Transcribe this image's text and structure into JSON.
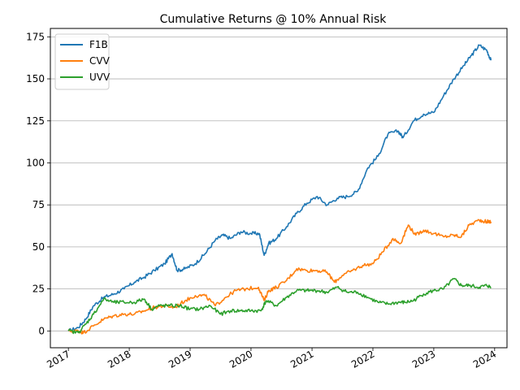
{
  "chart_data": {
    "type": "line",
    "title": "Cumulative Returns @ 10% Annual Risk",
    "xlabel": "",
    "ylabel": "",
    "xlim": [
      "2016-09-15",
      "2024-03-15"
    ],
    "ylim": [
      -10,
      180
    ],
    "x_ticks": [
      "2017",
      "2018",
      "2019",
      "2020",
      "2021",
      "2022",
      "2023",
      "2024"
    ],
    "y_ticks": [
      0,
      25,
      50,
      75,
      100,
      125,
      150,
      175
    ],
    "grid": "horizontal",
    "legend_position": "top-left",
    "series": [
      {
        "name": "F1B",
        "color": "#1f77b4",
        "points": [
          [
            "2017-01-01",
            0
          ],
          [
            "2017-03-01",
            2
          ],
          [
            "2017-04-15",
            7
          ],
          [
            "2017-06-01",
            15
          ],
          [
            "2017-08-01",
            20
          ],
          [
            "2017-10-01",
            22
          ],
          [
            "2017-12-01",
            25
          ],
          [
            "2018-02-01",
            29
          ],
          [
            "2018-04-01",
            32
          ],
          [
            "2018-06-01",
            36
          ],
          [
            "2018-08-01",
            40
          ],
          [
            "2018-09-15",
            46
          ],
          [
            "2018-10-15",
            36
          ],
          [
            "2018-12-01",
            37
          ],
          [
            "2019-02-01",
            40
          ],
          [
            "2019-04-01",
            46
          ],
          [
            "2019-06-01",
            54
          ],
          [
            "2019-07-15",
            57
          ],
          [
            "2019-09-01",
            55
          ],
          [
            "2019-11-01",
            59
          ],
          [
            "2020-01-01",
            58
          ],
          [
            "2020-02-20",
            58
          ],
          [
            "2020-03-20",
            45
          ],
          [
            "2020-04-15",
            52
          ],
          [
            "2020-06-01",
            55
          ],
          [
            "2020-08-01",
            62
          ],
          [
            "2020-10-01",
            70
          ],
          [
            "2020-12-01",
            76
          ],
          [
            "2021-02-01",
            80
          ],
          [
            "2021-04-01",
            75
          ],
          [
            "2021-06-01",
            79
          ],
          [
            "2021-08-01",
            80
          ],
          [
            "2021-10-01",
            83
          ],
          [
            "2021-12-01",
            97
          ],
          [
            "2022-02-01",
            104
          ],
          [
            "2022-04-01",
            117
          ],
          [
            "2022-06-01",
            119
          ],
          [
            "2022-07-01",
            115
          ],
          [
            "2022-09-01",
            125
          ],
          [
            "2022-11-01",
            129
          ],
          [
            "2023-01-01",
            130
          ],
          [
            "2023-03-01",
            140
          ],
          [
            "2023-05-01",
            150
          ],
          [
            "2023-07-01",
            158
          ],
          [
            "2023-08-15",
            164
          ],
          [
            "2023-10-01",
            170
          ],
          [
            "2023-11-15",
            167
          ],
          [
            "2023-12-10",
            161
          ]
        ]
      },
      {
        "name": "CVV",
        "color": "#ff7f0e",
        "points": [
          [
            "2017-01-01",
            0
          ],
          [
            "2017-03-01",
            0
          ],
          [
            "2017-04-01",
            -1
          ],
          [
            "2017-06-01",
            3
          ],
          [
            "2017-08-01",
            7
          ],
          [
            "2017-10-01",
            9
          ],
          [
            "2017-12-01",
            10
          ],
          [
            "2018-02-01",
            10
          ],
          [
            "2018-04-01",
            12
          ],
          [
            "2018-06-01",
            14
          ],
          [
            "2018-08-01",
            15
          ],
          [
            "2018-10-01",
            14
          ],
          [
            "2018-12-01",
            18
          ],
          [
            "2019-02-01",
            21
          ],
          [
            "2019-04-01",
            21
          ],
          [
            "2019-06-01",
            15
          ],
          [
            "2019-08-01",
            20
          ],
          [
            "2019-10-01",
            24
          ],
          [
            "2019-12-01",
            25
          ],
          [
            "2020-02-15",
            26
          ],
          [
            "2020-03-20",
            18
          ],
          [
            "2020-04-15",
            24
          ],
          [
            "2020-06-01",
            26
          ],
          [
            "2020-08-01",
            30
          ],
          [
            "2020-10-01",
            37
          ],
          [
            "2020-12-01",
            36
          ],
          [
            "2021-02-01",
            36
          ],
          [
            "2021-04-01",
            35
          ],
          [
            "2021-05-15",
            29
          ],
          [
            "2021-07-01",
            33
          ],
          [
            "2021-09-01",
            36
          ],
          [
            "2021-11-01",
            39
          ],
          [
            "2022-01-01",
            40
          ],
          [
            "2022-03-01",
            47
          ],
          [
            "2022-05-01",
            55
          ],
          [
            "2022-06-15",
            52
          ],
          [
            "2022-08-01",
            63
          ],
          [
            "2022-09-15",
            57
          ],
          [
            "2022-11-01",
            60
          ],
          [
            "2023-01-01",
            58
          ],
          [
            "2023-03-01",
            56
          ],
          [
            "2023-05-01",
            57
          ],
          [
            "2023-06-15",
            56
          ],
          [
            "2023-08-01",
            63
          ],
          [
            "2023-10-01",
            66
          ],
          [
            "2023-11-15",
            65
          ],
          [
            "2023-12-10",
            65
          ]
        ]
      },
      {
        "name": "UVV",
        "color": "#2ca02c",
        "points": [
          [
            "2017-01-01",
            0
          ],
          [
            "2017-03-01",
            -1
          ],
          [
            "2017-04-15",
            4
          ],
          [
            "2017-06-01",
            10
          ],
          [
            "2017-08-01",
            19
          ],
          [
            "2017-10-01",
            17
          ],
          [
            "2017-12-01",
            17
          ],
          [
            "2018-02-01",
            17
          ],
          [
            "2018-04-01",
            19
          ],
          [
            "2018-05-15",
            13
          ],
          [
            "2018-07-01",
            15
          ],
          [
            "2018-09-01",
            15
          ],
          [
            "2018-11-01",
            15
          ],
          [
            "2019-01-01",
            13
          ],
          [
            "2019-03-01",
            13
          ],
          [
            "2019-05-01",
            15
          ],
          [
            "2019-07-01",
            10
          ],
          [
            "2019-09-01",
            12
          ],
          [
            "2019-11-01",
            12
          ],
          [
            "2020-01-01",
            12
          ],
          [
            "2020-03-01",
            12
          ],
          [
            "2020-04-01",
            18
          ],
          [
            "2020-06-01",
            15
          ],
          [
            "2020-08-01",
            20
          ],
          [
            "2020-10-01",
            24
          ],
          [
            "2020-12-01",
            24
          ],
          [
            "2021-02-01",
            24
          ],
          [
            "2021-04-01",
            23
          ],
          [
            "2021-06-01",
            26
          ],
          [
            "2021-08-01",
            23
          ],
          [
            "2021-10-01",
            23
          ],
          [
            "2021-12-01",
            20
          ],
          [
            "2022-02-01",
            17
          ],
          [
            "2022-04-01",
            16
          ],
          [
            "2022-06-01",
            17
          ],
          [
            "2022-07-15",
            17
          ],
          [
            "2022-09-01",
            18
          ],
          [
            "2022-11-01",
            22
          ],
          [
            "2023-01-01",
            24
          ],
          [
            "2023-03-01",
            25
          ],
          [
            "2023-05-01",
            31
          ],
          [
            "2023-06-15",
            27
          ],
          [
            "2023-08-01",
            27
          ],
          [
            "2023-10-01",
            26
          ],
          [
            "2023-11-15",
            27
          ],
          [
            "2023-12-10",
            26
          ]
        ]
      }
    ]
  }
}
